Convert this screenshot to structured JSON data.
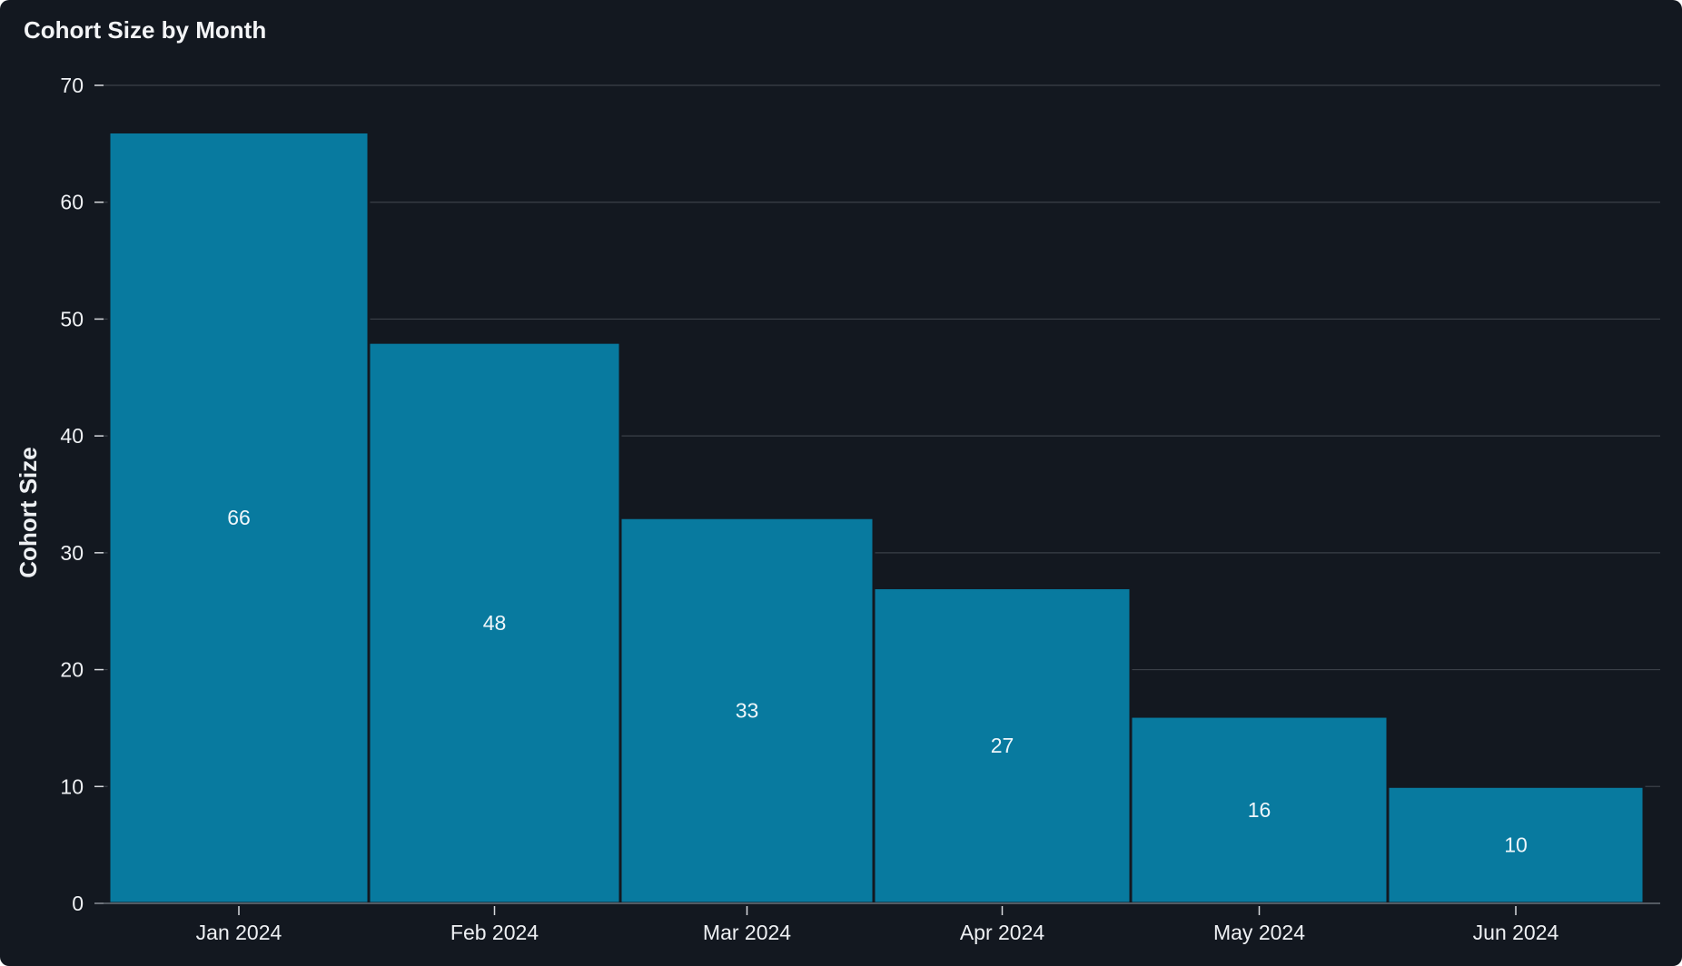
{
  "chart_data": {
    "type": "bar",
    "title": "Cohort Size by Month",
    "xlabel": "",
    "ylabel": "Cohort Size",
    "categories": [
      "Jan 2024",
      "Feb 2024",
      "Mar 2024",
      "Apr 2024",
      "May 2024",
      "Jun 2024"
    ],
    "values": [
      66,
      48,
      33,
      27,
      16,
      10
    ],
    "ylim": [
      0,
      70
    ],
    "yticks": [
      0,
      10,
      20,
      30,
      40,
      50,
      60,
      70
    ],
    "grid": true,
    "colors": {
      "background": "#131820",
      "bar": "#087a9f",
      "grid": "#3b4048",
      "text": "#eef0f3"
    }
  }
}
